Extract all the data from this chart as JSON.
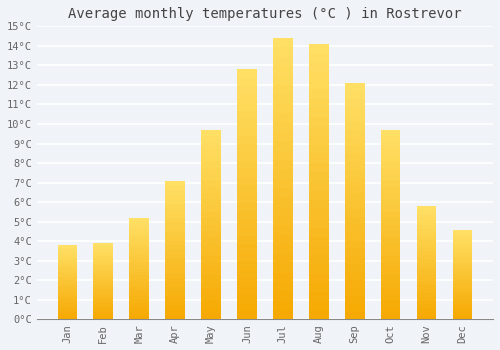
{
  "title": "Average monthly temperatures (°C ) in Rostrevor",
  "months": [
    "Jan",
    "Feb",
    "Mar",
    "Apr",
    "May",
    "Jun",
    "Jul",
    "Aug",
    "Sep",
    "Oct",
    "Nov",
    "Dec"
  ],
  "temperatures": [
    3.8,
    3.9,
    5.2,
    7.1,
    9.7,
    12.8,
    14.4,
    14.1,
    12.1,
    9.7,
    5.8,
    4.6
  ],
  "ylim": [
    0,
    15
  ],
  "yticks": [
    0,
    1,
    2,
    3,
    4,
    5,
    6,
    7,
    8,
    9,
    10,
    11,
    12,
    13,
    14,
    15
  ],
  "bar_color_bottom": "#F5A800",
  "bar_color_top": "#FFE066",
  "background_color": "#F0F4F8",
  "plot_bg_color": "#F0F4F8",
  "grid_color": "#FFFFFF",
  "title_color": "#444444",
  "tick_color": "#666666",
  "title_fontsize": 10,
  "tick_fontsize": 7.5,
  "bar_width": 0.55,
  "figsize": [
    5.0,
    3.5
  ],
  "dpi": 100,
  "n_gradient_segments": 30
}
